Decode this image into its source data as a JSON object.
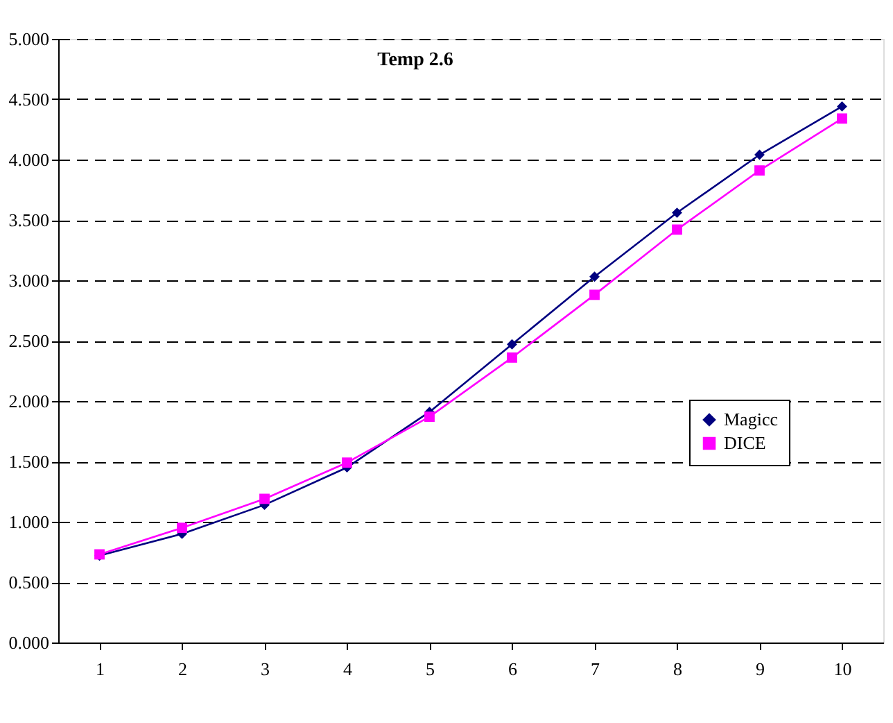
{
  "chart_data": {
    "type": "line",
    "title": "Temp 2.6",
    "categories": [
      "1",
      "2",
      "3",
      "4",
      "5",
      "6",
      "7",
      "8",
      "9",
      "10"
    ],
    "series": [
      {
        "name": "Magicc",
        "color": "#000080",
        "marker": "diamond",
        "values": [
          0.72,
          0.9,
          1.14,
          1.45,
          1.91,
          2.47,
          3.03,
          3.56,
          4.04,
          4.44
        ]
      },
      {
        "name": "DICE",
        "color": "#ff00ff",
        "marker": "square",
        "values": [
          0.73,
          0.95,
          1.19,
          1.49,
          1.87,
          2.36,
          2.88,
          3.42,
          3.91,
          4.34
        ]
      }
    ],
    "ylim": [
      0,
      5
    ],
    "yticks": [
      {
        "value": 0,
        "label": "0.000"
      },
      {
        "value": 0.5,
        "label": "0.500"
      },
      {
        "value": 1,
        "label": "1.000"
      },
      {
        "value": 1.5,
        "label": "1.500"
      },
      {
        "value": 2,
        "label": "2.000"
      },
      {
        "value": 2.5,
        "label": "2.500"
      },
      {
        "value": 3,
        "label": "3.000"
      },
      {
        "value": 3.5,
        "label": "3.500"
      },
      {
        "value": 4,
        "label": "4.000"
      },
      {
        "value": 4.5,
        "label": "4.500"
      },
      {
        "value": 5,
        "label": "5.000"
      }
    ],
    "grid": "y",
    "legend": "right",
    "line_style": "solid"
  }
}
